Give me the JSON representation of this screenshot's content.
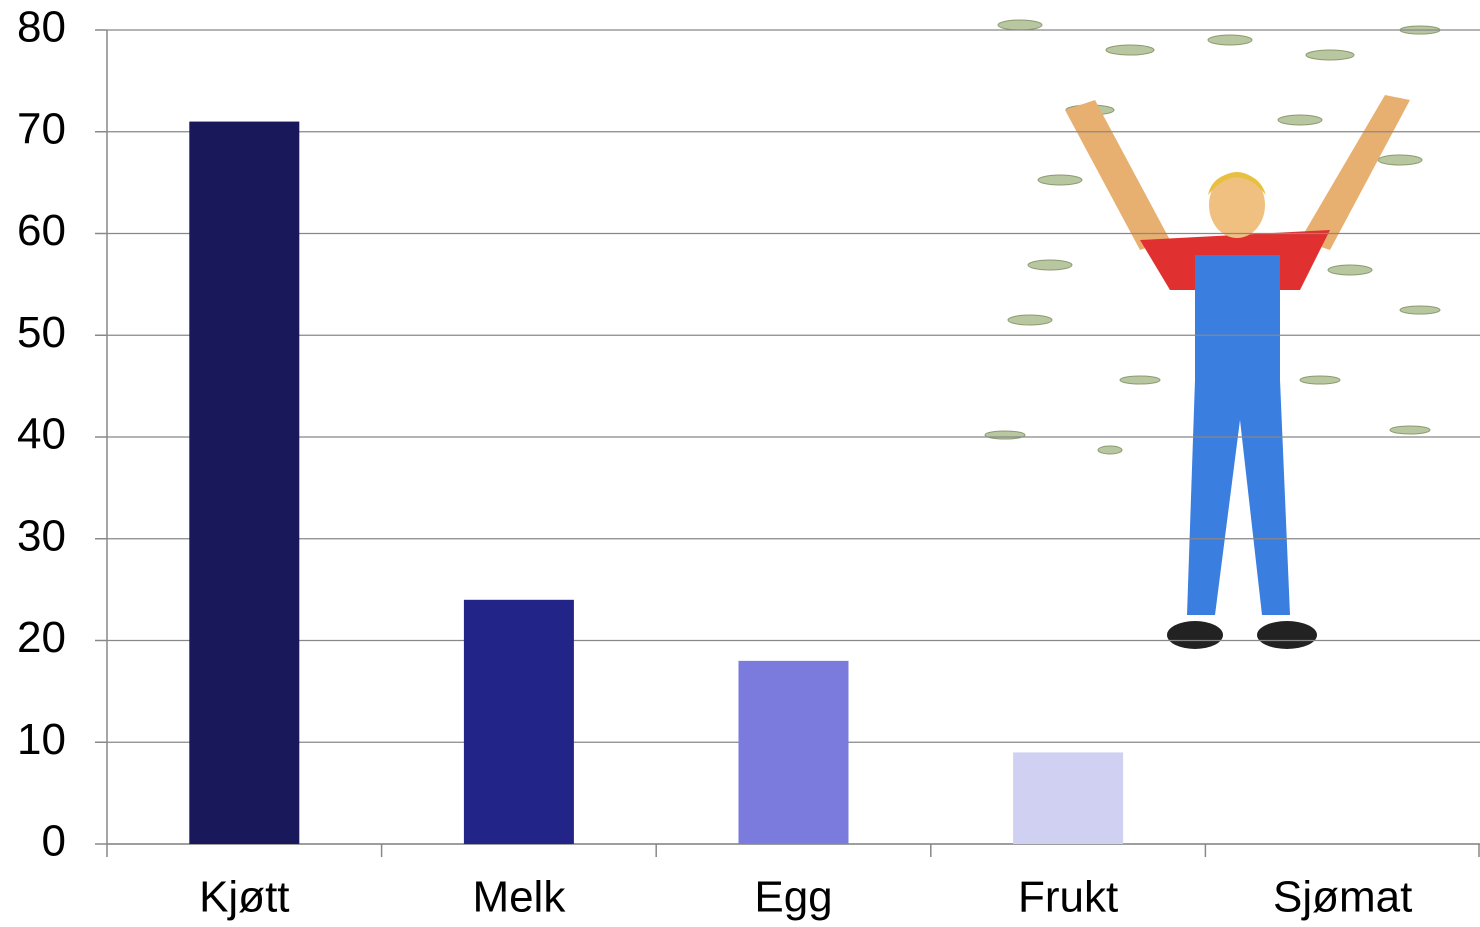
{
  "chart_data": {
    "type": "bar",
    "categories": [
      "Kjøtt",
      "Melk",
      "Egg",
      "Frukt",
      "Sjømat"
    ],
    "values": [
      71,
      24,
      18,
      9,
      0
    ],
    "colors": [
      "#18185a",
      "#222488",
      "#7b7bdd",
      "#d0d0f2",
      "#d0d0f2"
    ],
    "ylim": [
      0,
      80
    ],
    "yticks": [
      0,
      10,
      20,
      30,
      40,
      50,
      60,
      70,
      80
    ],
    "grid": true
  }
}
